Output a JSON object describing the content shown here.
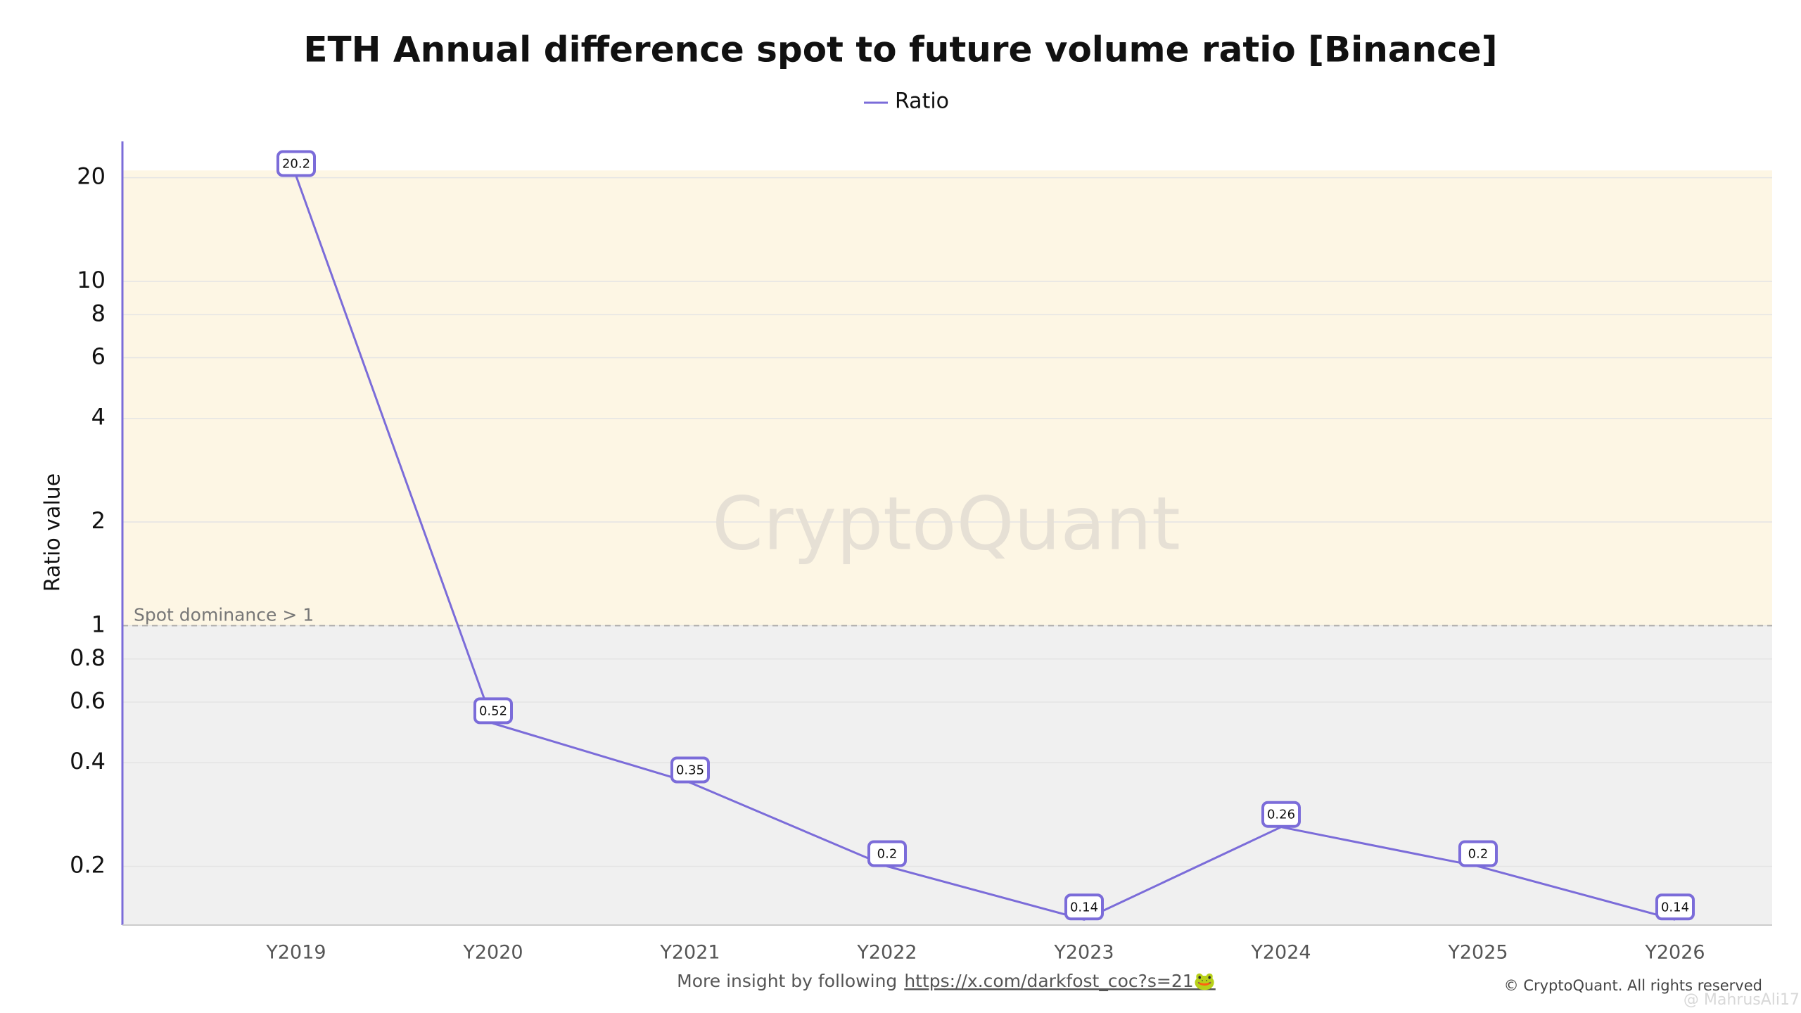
{
  "chart_data": {
    "type": "line",
    "title": "ETH Annual difference spot to future volume ratio [Binance]",
    "y_label": "Ratio value",
    "categories": [
      "Y2019",
      "Y2020",
      "Y2021",
      "Y2022",
      "Y2023",
      "Y2024",
      "Y2025",
      "Y2026"
    ],
    "series": [
      {
        "name": "Ratio",
        "color": "#7b6cd9",
        "values": [
          20.2,
          0.52,
          0.35,
          0.2,
          0.14,
          0.26,
          0.2,
          0.14
        ]
      }
    ],
    "log_scale": true,
    "ylim": [
      0.135,
      25.5
    ],
    "yticks": [
      0.2,
      0.4,
      0.6,
      0.8,
      1,
      2,
      4,
      6,
      8,
      10,
      20
    ],
    "grid": true,
    "legend": "top",
    "threshold": {
      "value": 1,
      "label": "Spot dominance > 1"
    },
    "zones": [
      {
        "from": 1,
        "to": 21,
        "color": "#fdf6e4"
      },
      {
        "from": 0.135,
        "to": 1,
        "color": "#f0f0f0"
      }
    ],
    "watermark": "CryptoQuant",
    "footer": {
      "text": "More insight by following",
      "link": "https://x.com/darkfost_coc?s=21🐸"
    },
    "copyright": "© CryptoQuant. All rights reserved",
    "credit": "@ MahrusAli17"
  }
}
